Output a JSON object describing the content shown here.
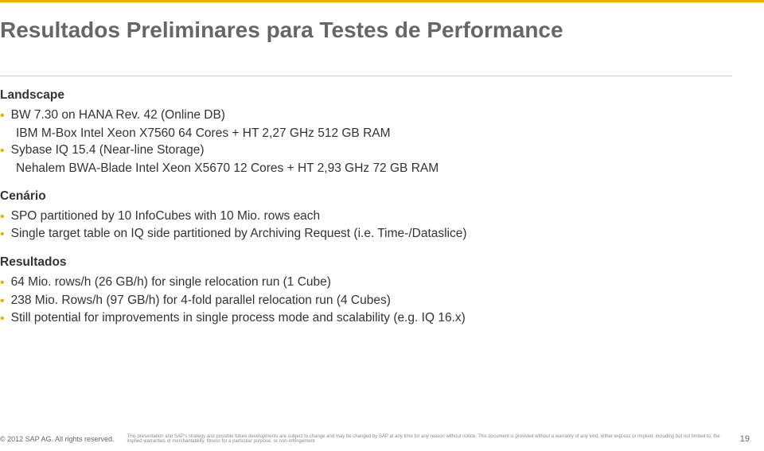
{
  "title": "Resultados Preliminares para Testes de Performance",
  "colors": {
    "accent": "#f0ab00",
    "title": "#666666",
    "text": "#333333",
    "divider": "#cccccc",
    "footer": "#666666",
    "disclaimer": "#888888",
    "background": "#ffffff"
  },
  "sections": {
    "landscape": {
      "heading": "Landscape",
      "items": [
        {
          "main": "BW 7.30 on HANA Rev. 42 (Online DB)",
          "sub": "IBM M-Box Intel Xeon X7560 64 Cores + HT 2,27 GHz 512 GB RAM"
        },
        {
          "main": "Sybase IQ 15.4 (Near-line Storage)",
          "sub": "Nehalem BWA-Blade Intel Xeon X5670 12 Cores + HT 2,93 GHz 72 GB RAM"
        }
      ]
    },
    "cenario": {
      "heading": "Cenário",
      "items": [
        {
          "main": "SPO partitioned by 10 InfoCubes with 10 Mio. rows each"
        },
        {
          "main": "Single target table on IQ side partitioned by Archiving Request (i.e. Time-/Dataslice)"
        }
      ]
    },
    "resultados": {
      "heading": "Resultados",
      "items": [
        {
          "main": "64 Mio. rows/h (26 GB/h) for single relocation run (1 Cube)"
        },
        {
          "main": "238 Mio. Rows/h (97 GB/h) for 4-fold parallel relocation run (4 Cubes)"
        },
        {
          "main": "Still potential for improvements in single process mode and scalability (e.g. IQ 16.x)"
        }
      ]
    }
  },
  "footer": {
    "copyright": "© 2012 SAP AG. All rights reserved.",
    "disclaimer": "This presentation and SAP's strategy and possible future developments are subject to change and may be changed by SAP at any time for any reason without notice. This document is provided without a warranty of any kind, either express or implied, including but not limited to, the implied warranties of merchantability, fitness for a particular purpose, or non-infringement",
    "page": "19"
  }
}
